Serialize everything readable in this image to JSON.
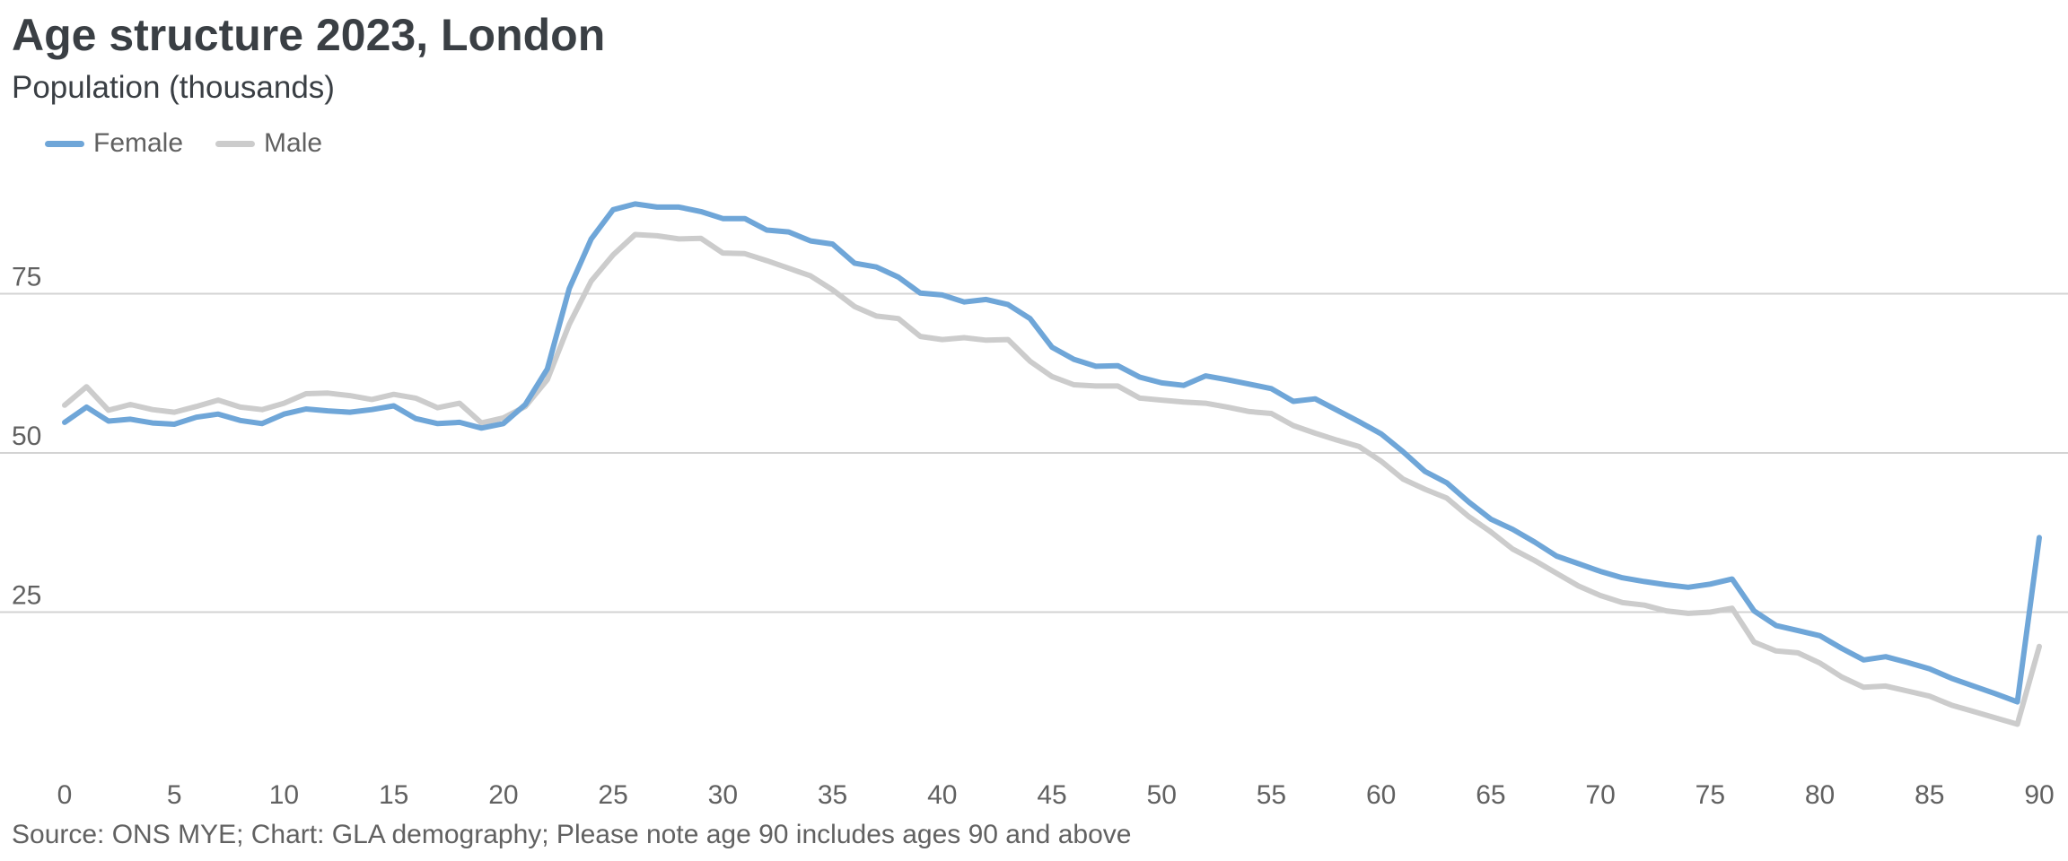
{
  "title": "Age structure 2023, London",
  "subtitle": "Population (thousands)",
  "source": "Source: ONS MYE; Chart: GLA demography; Please note age 90 includes ages 90 and above",
  "legend": [
    {
      "name": "Female",
      "color": "#6fa6d8"
    },
    {
      "name": "Male",
      "color": "#cccccc"
    }
  ],
  "chart_data": {
    "type": "line",
    "title": "Age structure 2023, London",
    "subtitle": "Population (thousands)",
    "xlabel": "",
    "ylabel": "",
    "xlim": [
      0,
      90
    ],
    "ylim": [
      0,
      100
    ],
    "x_ticks": [
      0,
      5,
      10,
      15,
      20,
      25,
      30,
      35,
      40,
      45,
      50,
      55,
      60,
      65,
      70,
      75,
      80,
      85,
      90
    ],
    "y_ticks": [
      25,
      50,
      75
    ],
    "grid": "horizontal",
    "legend_position": "top-left",
    "x": [
      0,
      1,
      2,
      3,
      4,
      5,
      6,
      7,
      8,
      9,
      10,
      11,
      12,
      13,
      14,
      15,
      16,
      17,
      18,
      19,
      20,
      21,
      22,
      23,
      24,
      25,
      26,
      27,
      28,
      29,
      30,
      31,
      32,
      33,
      34,
      35,
      36,
      37,
      38,
      39,
      40,
      41,
      42,
      43,
      44,
      45,
      46,
      47,
      48,
      49,
      50,
      51,
      52,
      53,
      54,
      55,
      56,
      57,
      58,
      59,
      60,
      61,
      62,
      63,
      64,
      65,
      66,
      67,
      68,
      69,
      70,
      71,
      72,
      73,
      74,
      75,
      76,
      77,
      78,
      79,
      80,
      81,
      82,
      83,
      84,
      85,
      86,
      87,
      88,
      89,
      90
    ],
    "series": [
      {
        "name": "Female",
        "color": "#6fa6d8",
        "values": [
          54.8,
          57.2,
          55.0,
          55.3,
          54.7,
          54.5,
          55.6,
          56.1,
          55.1,
          54.6,
          56.1,
          56.9,
          56.6,
          56.4,
          56.8,
          57.4,
          55.4,
          54.6,
          54.8,
          53.9,
          54.6,
          57.6,
          63.2,
          75.8,
          83.6,
          88.2,
          89.1,
          88.6,
          88.6,
          87.9,
          86.8,
          86.8,
          85.0,
          84.7,
          83.3,
          82.8,
          79.8,
          79.2,
          77.6,
          75.1,
          74.8,
          73.7,
          74.1,
          73.3,
          71.1,
          66.6,
          64.7,
          63.6,
          63.7,
          61.9,
          61.0,
          60.6,
          62.1,
          61.5,
          60.8,
          60.1,
          58.1,
          58.5,
          56.7,
          54.9,
          53.0,
          50.2,
          47.1,
          45.3,
          42.3,
          39.6,
          38.0,
          36.0,
          33.8,
          32.6,
          31.4,
          30.4,
          29.8,
          29.3,
          28.9,
          29.4,
          30.2,
          25.2,
          22.9,
          22.1,
          21.3,
          19.3,
          17.5,
          18.0,
          17.1,
          16.1,
          14.6,
          13.4,
          12.2,
          10.9,
          36.7
        ]
      },
      {
        "name": "Male",
        "color": "#cccccc",
        "values": [
          57.5,
          60.4,
          56.7,
          57.6,
          56.8,
          56.4,
          57.3,
          58.3,
          57.2,
          56.8,
          57.8,
          59.3,
          59.4,
          59.0,
          58.4,
          59.2,
          58.6,
          57.1,
          57.8,
          54.7,
          55.5,
          57.3,
          61.5,
          70.2,
          77.0,
          81.1,
          84.3,
          84.1,
          83.6,
          83.7,
          81.4,
          81.3,
          80.2,
          79.0,
          77.8,
          75.6,
          73.0,
          71.5,
          71.1,
          68.3,
          67.8,
          68.1,
          67.7,
          67.8,
          64.4,
          62.0,
          60.7,
          60.5,
          60.5,
          58.6,
          58.3,
          58.0,
          57.8,
          57.2,
          56.5,
          56.2,
          54.3,
          53.1,
          52.0,
          51.0,
          48.7,
          45.9,
          44.3,
          42.9,
          40.0,
          37.6,
          34.9,
          33.1,
          31.1,
          29.1,
          27.6,
          26.5,
          26.1,
          25.2,
          24.8,
          25.0,
          25.6,
          20.3,
          18.9,
          18.6,
          17.0,
          14.8,
          13.2,
          13.4,
          12.6,
          11.8,
          10.4,
          9.4,
          8.4,
          7.4,
          19.6
        ]
      }
    ]
  }
}
